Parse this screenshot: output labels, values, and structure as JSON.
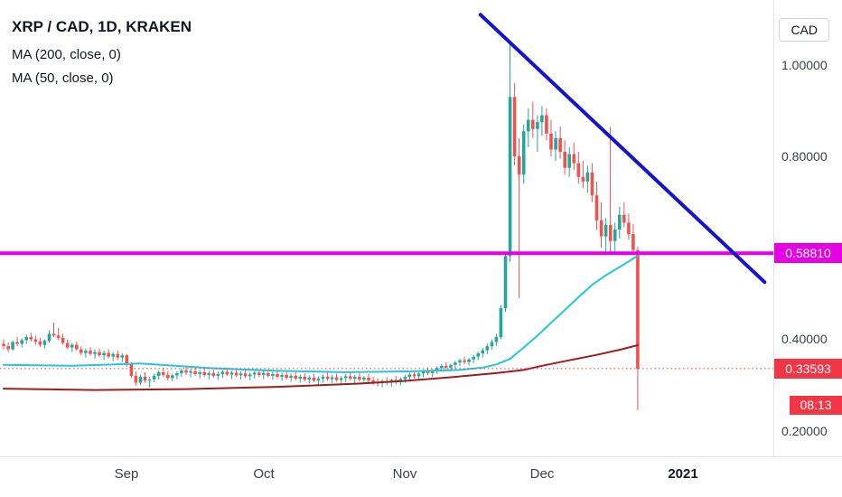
{
  "legend": {
    "title": "XRP / CAD, 1D, KRAKEN",
    "indicators": [
      "MA (200, close, 0)",
      "MA (50, close, 0)"
    ]
  },
  "price_axis_currency": "CAD",
  "chart_data": {
    "type": "candlestick",
    "symbol": "XRP / CAD",
    "interval": "1D",
    "exchange": "KRAKEN",
    "colors": {
      "up": "#26a69a",
      "down": "#ef5350",
      "ma50": "#26c6da",
      "ma200": "#9c1f1f",
      "trendline": "#1414cc",
      "resistance": "#e500e5",
      "last_price": "#f23645"
    },
    "price_axis": {
      "min": 0.144,
      "max": 1.142,
      "ticks": [
        {
          "label": "1.00000",
          "value": 1.0
        },
        {
          "label": "0.80000",
          "value": 0.8
        },
        {
          "label": "0.40000",
          "value": 0.4
        },
        {
          "label": "0.20000",
          "value": 0.2
        }
      ]
    },
    "time_axis": {
      "ticks": [
        {
          "label": "Sep",
          "index": 27
        },
        {
          "label": "Oct",
          "index": 57
        },
        {
          "label": "Nov",
          "index": 88
        },
        {
          "label": "Dec",
          "index": 118
        },
        {
          "label": "2021",
          "index": 149,
          "bold": true
        }
      ]
    },
    "horizontal_lines": [
      {
        "name": "resistance-line",
        "price": 0.5881,
        "label": "0.58810",
        "color": "#e500e5",
        "style": "solid",
        "width": 4
      },
      {
        "name": "last-price-line",
        "price": 0.33593,
        "label": "0.33593",
        "color": "#f23645",
        "style": "dotted",
        "width": 1
      }
    ],
    "countdown": "08:13",
    "trendline": {
      "from": {
        "index": 104.5,
        "price": 1.11
      },
      "to": {
        "index": 166.8,
        "price": 0.525
      }
    },
    "ma50": [
      [
        0,
        0.344
      ],
      [
        15,
        0.342
      ],
      [
        30,
        0.347
      ],
      [
        45,
        0.337
      ],
      [
        60,
        0.331
      ],
      [
        75,
        0.328
      ],
      [
        90,
        0.33
      ],
      [
        100,
        0.333
      ],
      [
        105,
        0.338
      ],
      [
        108,
        0.345
      ],
      [
        111,
        0.357
      ],
      [
        114,
        0.382
      ],
      [
        117,
        0.408
      ],
      [
        120,
        0.436
      ],
      [
        123,
        0.464
      ],
      [
        126,
        0.492
      ],
      [
        129,
        0.519
      ],
      [
        132,
        0.54
      ],
      [
        135,
        0.558
      ],
      [
        137,
        0.57
      ],
      [
        139,
        0.583
      ]
    ],
    "ma200": [
      [
        0,
        0.292
      ],
      [
        20,
        0.289
      ],
      [
        40,
        0.291
      ],
      [
        60,
        0.296
      ],
      [
        78,
        0.303
      ],
      [
        88,
        0.309
      ],
      [
        98,
        0.317
      ],
      [
        108,
        0.326
      ],
      [
        114,
        0.333
      ],
      [
        118,
        0.342
      ],
      [
        124,
        0.354
      ],
      [
        130,
        0.366
      ],
      [
        135,
        0.377
      ],
      [
        139,
        0.387
      ]
    ],
    "candles": [
      [
        0.39,
        0.4,
        0.378,
        0.385
      ],
      [
        0.385,
        0.393,
        0.372,
        0.378
      ],
      [
        0.378,
        0.398,
        0.375,
        0.394
      ],
      [
        0.394,
        0.405,
        0.385,
        0.39
      ],
      [
        0.39,
        0.402,
        0.382,
        0.398
      ],
      [
        0.398,
        0.41,
        0.39,
        0.405
      ],
      [
        0.405,
        0.415,
        0.395,
        0.4
      ],
      [
        0.4,
        0.408,
        0.388,
        0.395
      ],
      [
        0.395,
        0.403,
        0.383,
        0.388
      ],
      [
        0.388,
        0.4,
        0.38,
        0.397
      ],
      [
        0.397,
        0.42,
        0.392,
        0.412
      ],
      [
        0.412,
        0.437,
        0.405,
        0.408
      ],
      [
        0.408,
        0.425,
        0.398,
        0.403
      ],
      [
        0.403,
        0.412,
        0.388,
        0.392
      ],
      [
        0.392,
        0.4,
        0.378,
        0.382
      ],
      [
        0.382,
        0.392,
        0.372,
        0.388
      ],
      [
        0.388,
        0.395,
        0.375,
        0.378
      ],
      [
        0.378,
        0.385,
        0.365,
        0.37
      ],
      [
        0.37,
        0.38,
        0.36,
        0.375
      ],
      [
        0.375,
        0.383,
        0.365,
        0.368
      ],
      [
        0.368,
        0.378,
        0.358,
        0.372
      ],
      [
        0.372,
        0.38,
        0.362,
        0.365
      ],
      [
        0.365,
        0.375,
        0.355,
        0.37
      ],
      [
        0.37,
        0.378,
        0.358,
        0.362
      ],
      [
        0.362,
        0.372,
        0.352,
        0.368
      ],
      [
        0.368,
        0.375,
        0.355,
        0.36
      ],
      [
        0.36,
        0.37,
        0.35,
        0.365
      ],
      [
        0.365,
        0.368,
        0.34,
        0.345
      ],
      [
        0.345,
        0.35,
        0.315,
        0.32
      ],
      [
        0.32,
        0.33,
        0.298,
        0.305
      ],
      [
        0.305,
        0.322,
        0.3,
        0.318
      ],
      [
        0.318,
        0.328,
        0.305,
        0.31
      ],
      [
        0.31,
        0.318,
        0.295,
        0.312
      ],
      [
        0.312,
        0.325,
        0.306,
        0.32
      ],
      [
        0.32,
        0.332,
        0.312,
        0.328
      ],
      [
        0.328,
        0.338,
        0.318,
        0.322
      ],
      [
        0.322,
        0.33,
        0.31,
        0.315
      ],
      [
        0.315,
        0.325,
        0.308,
        0.321
      ],
      [
        0.321,
        0.33,
        0.312,
        0.326
      ],
      [
        0.326,
        0.336,
        0.318,
        0.332
      ],
      [
        0.332,
        0.34,
        0.322,
        0.327
      ],
      [
        0.327,
        0.335,
        0.317,
        0.33
      ],
      [
        0.33,
        0.338,
        0.32,
        0.324
      ],
      [
        0.324,
        0.332,
        0.314,
        0.328
      ],
      [
        0.328,
        0.336,
        0.318,
        0.322
      ],
      [
        0.322,
        0.331,
        0.312,
        0.326
      ],
      [
        0.326,
        0.334,
        0.316,
        0.32
      ],
      [
        0.32,
        0.329,
        0.311,
        0.324
      ],
      [
        0.324,
        0.333,
        0.315,
        0.329
      ],
      [
        0.329,
        0.337,
        0.319,
        0.323
      ],
      [
        0.323,
        0.331,
        0.313,
        0.327
      ],
      [
        0.327,
        0.335,
        0.317,
        0.321
      ],
      [
        0.321,
        0.33,
        0.312,
        0.325
      ],
      [
        0.325,
        0.333,
        0.315,
        0.319
      ],
      [
        0.319,
        0.328,
        0.31,
        0.323
      ],
      [
        0.323,
        0.332,
        0.314,
        0.327
      ],
      [
        0.327,
        0.335,
        0.317,
        0.322
      ],
      [
        0.322,
        0.331,
        0.313,
        0.326
      ],
      [
        0.326,
        0.334,
        0.316,
        0.32
      ],
      [
        0.32,
        0.329,
        0.311,
        0.324
      ],
      [
        0.324,
        0.333,
        0.315,
        0.318
      ],
      [
        0.318,
        0.327,
        0.309,
        0.322
      ],
      [
        0.322,
        0.33,
        0.312,
        0.316
      ],
      [
        0.316,
        0.325,
        0.307,
        0.32
      ],
      [
        0.32,
        0.328,
        0.31,
        0.314
      ],
      [
        0.314,
        0.323,
        0.305,
        0.318
      ],
      [
        0.318,
        0.326,
        0.308,
        0.312
      ],
      [
        0.312,
        0.321,
        0.303,
        0.316
      ],
      [
        0.316,
        0.324,
        0.306,
        0.31
      ],
      [
        0.31,
        0.319,
        0.301,
        0.314
      ],
      [
        0.314,
        0.323,
        0.305,
        0.318
      ],
      [
        0.318,
        0.327,
        0.309,
        0.313
      ],
      [
        0.313,
        0.322,
        0.304,
        0.317
      ],
      [
        0.317,
        0.325,
        0.307,
        0.311
      ],
      [
        0.311,
        0.32,
        0.302,
        0.315
      ],
      [
        0.315,
        0.324,
        0.306,
        0.319
      ],
      [
        0.319,
        0.328,
        0.31,
        0.314
      ],
      [
        0.314,
        0.322,
        0.304,
        0.318
      ],
      [
        0.318,
        0.326,
        0.308,
        0.312
      ],
      [
        0.312,
        0.32,
        0.302,
        0.316
      ],
      [
        0.316,
        0.324,
        0.306,
        0.31
      ],
      [
        0.31,
        0.318,
        0.3,
        0.307
      ],
      [
        0.307,
        0.315,
        0.297,
        0.304
      ],
      [
        0.304,
        0.313,
        0.295,
        0.309
      ],
      [
        0.309,
        0.317,
        0.299,
        0.305
      ],
      [
        0.305,
        0.314,
        0.296,
        0.311
      ],
      [
        0.311,
        0.32,
        0.302,
        0.308
      ],
      [
        0.308,
        0.317,
        0.299,
        0.313
      ],
      [
        0.313,
        0.322,
        0.305,
        0.318
      ],
      [
        0.318,
        0.327,
        0.31,
        0.323
      ],
      [
        0.323,
        0.331,
        0.314,
        0.319
      ],
      [
        0.319,
        0.328,
        0.311,
        0.325
      ],
      [
        0.325,
        0.334,
        0.317,
        0.33
      ],
      [
        0.33,
        0.338,
        0.321,
        0.326
      ],
      [
        0.326,
        0.335,
        0.318,
        0.332
      ],
      [
        0.332,
        0.341,
        0.324,
        0.337
      ],
      [
        0.337,
        0.346,
        0.329,
        0.342
      ],
      [
        0.342,
        0.35,
        0.333,
        0.338
      ],
      [
        0.338,
        0.347,
        0.33,
        0.344
      ],
      [
        0.344,
        0.353,
        0.336,
        0.349
      ],
      [
        0.349,
        0.358,
        0.341,
        0.354
      ],
      [
        0.354,
        0.362,
        0.345,
        0.35
      ],
      [
        0.35,
        0.36,
        0.343,
        0.356
      ],
      [
        0.356,
        0.366,
        0.348,
        0.362
      ],
      [
        0.362,
        0.373,
        0.354,
        0.369
      ],
      [
        0.369,
        0.381,
        0.36,
        0.376
      ],
      [
        0.376,
        0.39,
        0.368,
        0.385
      ],
      [
        0.385,
        0.4,
        0.377,
        0.394
      ],
      [
        0.394,
        0.412,
        0.386,
        0.405
      ],
      [
        0.405,
        0.475,
        0.4,
        0.468
      ],
      [
        0.468,
        0.59,
        0.46,
        0.582
      ],
      [
        0.582,
        1.05,
        0.57,
        0.93
      ],
      [
        0.93,
        0.96,
        0.78,
        0.8
      ],
      [
        0.8,
        0.84,
        0.49,
        0.76
      ],
      [
        0.76,
        0.87,
        0.74,
        0.855
      ],
      [
        0.855,
        0.905,
        0.82,
        0.88
      ],
      [
        0.88,
        0.92,
        0.84,
        0.86
      ],
      [
        0.86,
        0.89,
        0.81,
        0.875
      ],
      [
        0.875,
        0.91,
        0.845,
        0.89
      ],
      [
        0.89,
        0.905,
        0.835,
        0.85
      ],
      [
        0.85,
        0.88,
        0.8,
        0.815
      ],
      [
        0.815,
        0.855,
        0.79,
        0.84
      ],
      [
        0.84,
        0.865,
        0.795,
        0.81
      ],
      [
        0.81,
        0.835,
        0.76,
        0.775
      ],
      [
        0.775,
        0.82,
        0.755,
        0.805
      ],
      [
        0.805,
        0.83,
        0.77,
        0.785
      ],
      [
        0.785,
        0.81,
        0.74,
        0.755
      ],
      [
        0.755,
        0.79,
        0.73,
        0.745
      ],
      [
        0.745,
        0.78,
        0.72,
        0.765
      ],
      [
        0.765,
        0.785,
        0.7,
        0.715
      ],
      [
        0.715,
        0.745,
        0.64,
        0.66
      ],
      [
        0.66,
        0.7,
        0.6,
        0.625
      ],
      [
        0.625,
        0.665,
        0.59,
        0.65
      ],
      [
        0.65,
        0.865,
        0.585,
        0.615
      ],
      [
        0.615,
        0.655,
        0.588,
        0.64
      ],
      [
        0.64,
        0.69,
        0.62,
        0.672
      ],
      [
        0.672,
        0.7,
        0.645,
        0.655
      ],
      [
        0.655,
        0.675,
        0.618,
        0.63
      ],
      [
        0.63,
        0.652,
        0.588,
        0.595
      ],
      [
        0.595,
        0.602,
        0.245,
        0.336
      ]
    ]
  }
}
